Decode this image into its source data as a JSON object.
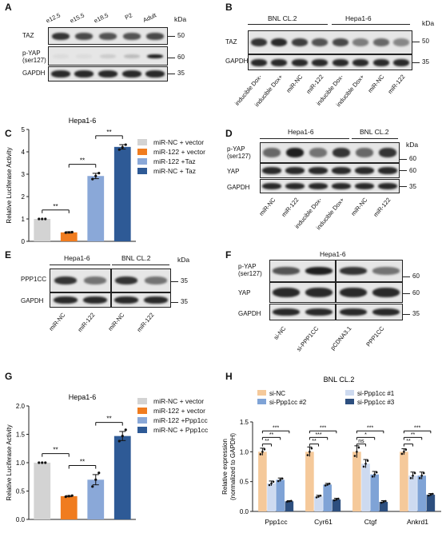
{
  "panels": {
    "A": {
      "letter": "A",
      "kda": "kDa",
      "lanes": [
        "e12.5",
        "e15.5",
        "e18.5",
        "P2",
        "Adult"
      ],
      "rows": [
        "TAZ",
        "p-YAP\n(ser127)",
        "GAPDH"
      ],
      "mw": [
        "50",
        "60",
        "35"
      ]
    },
    "B": {
      "letter": "B",
      "kda": "kDa",
      "groups": [
        "BNL CL.2",
        "Hepa1-6"
      ],
      "rows": [
        "TAZ",
        "GAPDH"
      ],
      "mw": [
        "50",
        "35"
      ],
      "lanes": [
        "inducible Dox-",
        "inducible Dox+",
        "miR-NC",
        "miR-122",
        "inducible Dox-",
        "inducible Dox+",
        "miR-NC",
        "miR-122"
      ]
    },
    "C": {
      "letter": "C",
      "legend": [
        "miR-NC + vector",
        "miR-122 + vector",
        "miR-122 +Taz",
        "miR-NC + Taz"
      ],
      "sig": [
        "**",
        "**",
        "**"
      ]
    },
    "D": {
      "letter": "D",
      "kda": "kDa",
      "groups": [
        "Hepa1-6",
        "BNL CL.2"
      ],
      "rows": [
        "p-YAP\n(ser127)",
        "YAP",
        "GAPDH"
      ],
      "mw": [
        "60",
        "60",
        "35"
      ],
      "lanes": [
        "miR-NC",
        "miR-122",
        "inducible Dox-",
        "inducible Dox+",
        "miR-NC",
        "miR-122"
      ]
    },
    "E": {
      "letter": "E",
      "kda": "kDa",
      "groups": [
        "Hepa1-6",
        "BNL CL.2"
      ],
      "rows": [
        "PPP1CC",
        "GAPDH"
      ],
      "mw": [
        "35",
        "35"
      ],
      "lanes": [
        "miR-NC",
        "miR-122",
        "miR-NC",
        "miR-122"
      ]
    },
    "F": {
      "letter": "F",
      "group": "Hepa1-6",
      "rows": [
        "p-YAP\n(ser127)",
        "YAP",
        "GAPDH"
      ],
      "mw": [
        "60",
        "60",
        "35"
      ],
      "lanes": [
        "si-NC",
        "si-PPP1CC",
        "pCDNA3.1",
        "PPP1CC"
      ]
    },
    "G": {
      "letter": "G",
      "legend": [
        "miR-NC + vector",
        "miR-122 + vector",
        "miR-122 +Ppp1cc",
        "miR-NC + Ppp1cc"
      ],
      "sig": [
        "**",
        "**",
        "**"
      ]
    },
    "H": {
      "letter": "H",
      "legend": [
        "si-NC",
        "si-Ppp1cc #1",
        "si-Ppp1cc #2",
        "si-Ppp1cc #3"
      ]
    }
  },
  "chart_data": [
    {
      "type": "bar",
      "panel": "C",
      "title": "Hepa1-6",
      "ylabel": "Relative Luciferase Activity",
      "xlabel": "",
      "ylim": [
        0,
        5
      ],
      "yticks": [
        0,
        1,
        2,
        3,
        4,
        5
      ],
      "categories": [
        "miR-NC + vector",
        "miR-122 + vector",
        "miR-122 +Taz",
        "miR-NC + Taz"
      ],
      "values": [
        1.0,
        0.4,
        2.92,
        4.22
      ],
      "errors": [
        0.0,
        0.03,
        0.12,
        0.1
      ],
      "points": [
        [
          1.0,
          1.0,
          1.0
        ],
        [
          0.39,
          0.4,
          0.41
        ],
        [
          2.78,
          2.92,
          3.05
        ],
        [
          4.1,
          4.2,
          4.32
        ]
      ],
      "colors": [
        "#d3d3d3",
        "#f07c1f",
        "#8aa8d8",
        "#2e5a96"
      ]
    },
    {
      "type": "bar",
      "panel": "G",
      "title": "Hepa1-6",
      "ylabel": "Relative Luciferase Activity",
      "xlabel": "",
      "ylim": [
        0,
        2.0
      ],
      "yticks": [
        0.0,
        0.5,
        1.0,
        1.5,
        2.0
      ],
      "categories": [
        "miR-NC + vector",
        "miR-122 + vector",
        "miR-122 +Ppp1cc",
        "miR-NC + Ppp1cc"
      ],
      "values": [
        1.0,
        0.41,
        0.7,
        1.47
      ],
      "errors": [
        0.0,
        0.01,
        0.09,
        0.08
      ],
      "points": [
        [
          1.0,
          1.0,
          1.0
        ],
        [
          0.4,
          0.41,
          0.42
        ],
        [
          0.58,
          0.7,
          0.82
        ],
        [
          1.38,
          1.47,
          1.58
        ]
      ],
      "colors": [
        "#d3d3d3",
        "#f07c1f",
        "#8aa8d8",
        "#2e5a96"
      ]
    },
    {
      "type": "bar",
      "panel": "H",
      "title": "BNL CL.2",
      "ylabel": "Relative expression\n(normalized to GAPDH)",
      "xlabel": "",
      "ylim": [
        0,
        1.5
      ],
      "yticks": [
        0.0,
        0.5,
        1.0,
        1.5
      ],
      "categories": [
        "Ppp1cc",
        "Cyr61",
        "Ctgf",
        "Ankrd1"
      ],
      "series": [
        {
          "name": "si-NC",
          "values": [
            1.0,
            1.0,
            1.0,
            1.0
          ],
          "errors": [
            0.06,
            0.08,
            0.1,
            0.05
          ],
          "color": "#f5c99a"
        },
        {
          "name": "si-Ppp1cc #1",
          "values": [
            0.47,
            0.25,
            0.8,
            0.6
          ],
          "errors": [
            0.04,
            0.02,
            0.07,
            0.06
          ],
          "color": "#cddaf0"
        },
        {
          "name": "si-Ppp1cc #2",
          "values": [
            0.53,
            0.45,
            0.62,
            0.6
          ],
          "errors": [
            0.03,
            0.02,
            0.05,
            0.06
          ],
          "color": "#7fa3d6"
        },
        {
          "name": "si-Ppp1cc #3",
          "values": [
            0.17,
            0.2,
            0.16,
            0.28
          ],
          "errors": [
            0.01,
            0.02,
            0.02,
            0.02
          ],
          "color": "#2d4f7f"
        }
      ],
      "sig": [
        [
          "**",
          "**",
          "***"
        ],
        [
          "**",
          "***",
          "***"
        ],
        [
          "ns",
          "*",
          "***"
        ],
        [
          "**",
          "**",
          "***"
        ]
      ]
    }
  ]
}
